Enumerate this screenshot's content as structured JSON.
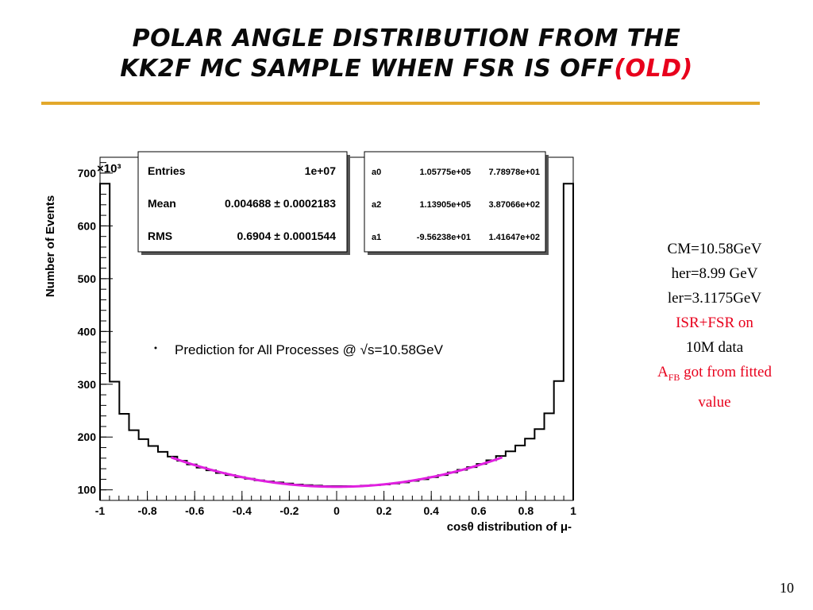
{
  "slide": {
    "title_line1": "POLAR ANGLE DISTRIBUTION FROM THE",
    "title_line2_black": "KK2F MC SAMPLE  WHEN FSR IS OFF",
    "title_line2_red": "(OLD)",
    "page_number": "10"
  },
  "side_notes": {
    "cm": "CM=10.58GeV",
    "her": "her=8.99 GeV",
    "ler": "ler=3.1175GeV",
    "isr_fsr": "ISR+FSR on",
    "data": "10M data",
    "afb_main": "A",
    "afb_sub": "FB",
    "afb_rest": " got from fitted",
    "afb_rest2": "value"
  },
  "stats_box": {
    "entries_label": "Entries",
    "entries_value": "1e+07",
    "mean_label": "Mean",
    "mean_value": "0.004688 ± 0.0002183",
    "rms_label": "RMS",
    "rms_value": "0.6904 ± 0.0001544"
  },
  "fit_box": {
    "a0_label": "a0",
    "a0_value": "1.05775e+05",
    "a0_error": "7.78978e+01",
    "a2_label": "a2",
    "a2_value": "1.13905e+05",
    "a2_error": "3.87066e+02",
    "a1_label": "a1",
    "a1_value": "-9.56238e+01",
    "a1_error": "1.41647e+02"
  },
  "chart_data": {
    "type": "histogram",
    "xlabel": "cosθ distribution of μ-",
    "ylabel": "Number of Events",
    "y_multiplier": "×10³",
    "legend_entry": "Prediction for All Processes @ √s=10.58GeV",
    "xlim": [
      -1,
      1
    ],
    "ylim": [
      80,
      730
    ],
    "x_ticks": [
      "-1",
      "-0.8",
      "-0.6",
      "-0.4",
      "-0.2",
      "0",
      "0.2",
      "0.4",
      "0.6",
      "0.8",
      "1"
    ],
    "y_ticks": [
      "100",
      "200",
      "300",
      "400",
      "500",
      "600",
      "700"
    ],
    "bin_edges_start": -1,
    "bin_width": 0.04,
    "values": [
      680,
      305,
      244,
      213,
      196,
      183,
      172,
      163,
      155,
      148,
      142,
      137,
      132,
      128,
      124,
      121,
      118,
      116,
      114,
      112,
      110,
      109,
      108,
      107,
      107,
      107,
      107,
      108,
      109,
      110,
      112,
      114,
      117,
      120,
      124,
      128,
      133,
      138,
      143,
      149,
      156,
      164,
      173,
      184,
      197,
      215,
      245,
      306,
      680
    ],
    "fit": {
      "function": "a0 + a1*x + a2*x^2",
      "a0": 105775,
      "a1": -95.6238,
      "a2": 113905,
      "range": [
        -0.7,
        0.7
      ],
      "color": "#e020e0"
    },
    "grid": false
  }
}
